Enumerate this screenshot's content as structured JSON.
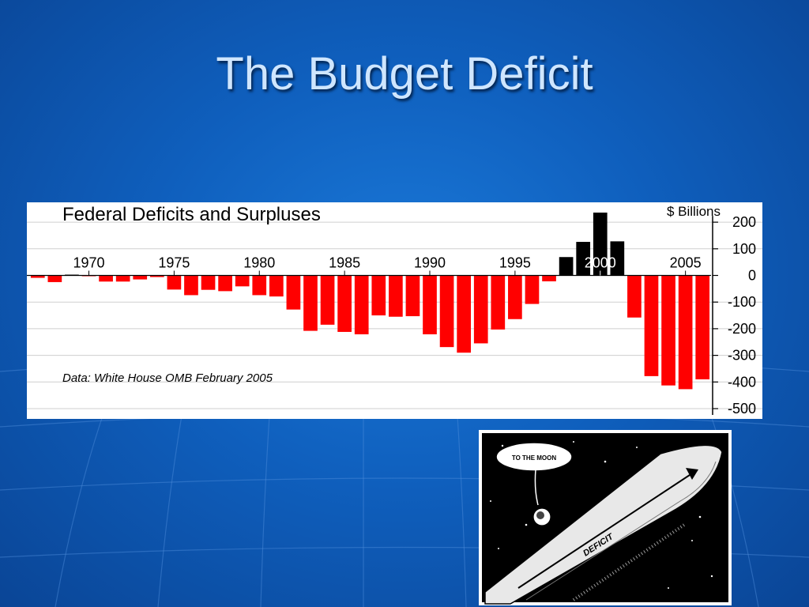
{
  "slide": {
    "title": "The Budget Deficit"
  },
  "chart_data": {
    "type": "bar",
    "title": "Federal Deficits and Surpluses",
    "unit_label": "$ Billions",
    "source_note": "Data:  White House OMB  February 2005",
    "x": [
      1967,
      1968,
      1969,
      1970,
      1971,
      1972,
      1973,
      1974,
      1975,
      1976,
      1977,
      1978,
      1979,
      1980,
      1981,
      1982,
      1983,
      1984,
      1985,
      1986,
      1987,
      1988,
      1989,
      1990,
      1991,
      1992,
      1993,
      1994,
      1995,
      1996,
      1997,
      1998,
      1999,
      2000,
      2001,
      2002,
      2003,
      2004,
      2005,
      2006
    ],
    "values": [
      -9,
      -25,
      3,
      -3,
      -23,
      -23,
      -15,
      -6,
      -53,
      -74,
      -54,
      -59,
      -41,
      -74,
      -79,
      -128,
      -208,
      -185,
      -212,
      -221,
      -150,
      -155,
      -153,
      -221,
      -269,
      -290,
      -255,
      -203,
      -164,
      -107,
      -22,
      69,
      126,
      236,
      128,
      -158,
      -378,
      -413,
      -427,
      -390
    ],
    "x_tick_labels": [
      "1970",
      "1975",
      "1980",
      "1985",
      "1990",
      "1995",
      "2000",
      "2005"
    ],
    "y_tick_labels": [
      "200",
      "100",
      "0",
      "-100",
      "-200",
      "-300",
      "-400",
      "-500"
    ],
    "ylim": [
      -500,
      200
    ],
    "grid": true,
    "colors": {
      "deficit": "#ff0000",
      "surplus": "#000000"
    }
  },
  "cartoon": {
    "bubble_text": "TO THE MOON",
    "rocket_label": "DEFICIT"
  }
}
